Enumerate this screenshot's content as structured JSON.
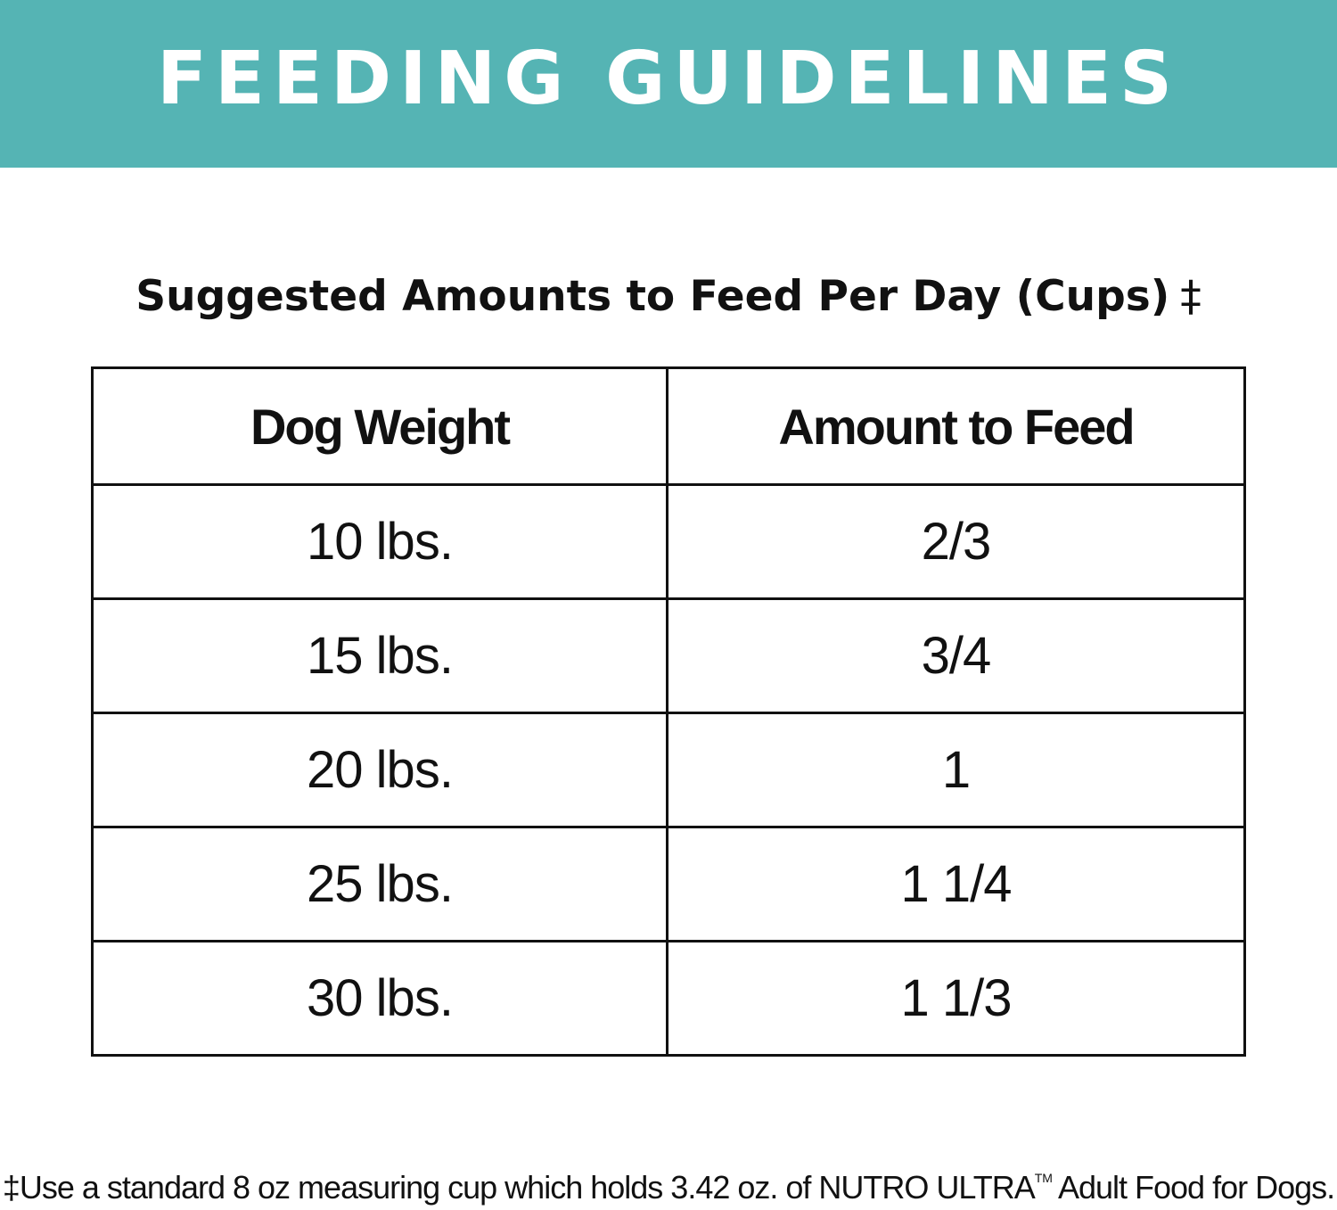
{
  "banner": {
    "title": "FEEDING GUIDELINES",
    "background_color": "#55b4b4"
  },
  "subtitle": {
    "text": "Suggested Amounts to Feed Per Day (Cups)",
    "symbol": "‡"
  },
  "table": {
    "headers": [
      "Dog Weight",
      "Amount to Feed"
    ],
    "rows": [
      [
        "10 lbs.",
        "2/3"
      ],
      [
        "15 lbs.",
        "3/4"
      ],
      [
        "20 lbs.",
        "1"
      ],
      [
        "25 lbs.",
        "1 1/4"
      ],
      [
        "30 lbs.",
        "1 1/3"
      ]
    ]
  },
  "footnote": {
    "text": "‡Use a standard 8 oz measuring cup which holds 3.42 oz. of NUTRO ULTRA",
    "trademark": "TM",
    "text_after": "Adult Food for Dogs."
  }
}
